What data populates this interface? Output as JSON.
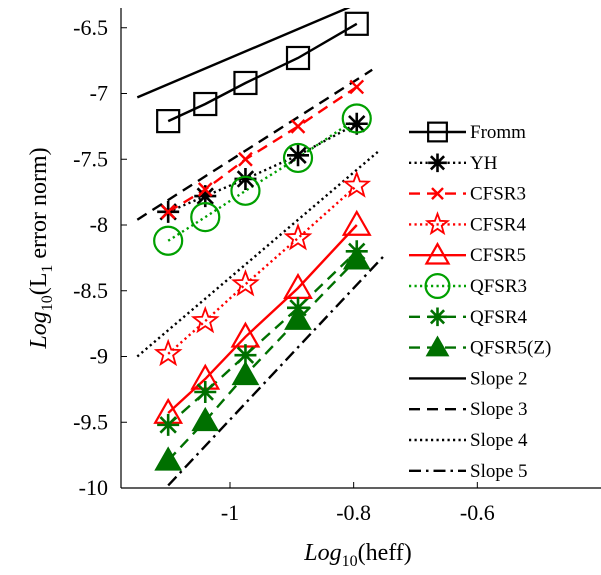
{
  "chart_data": {
    "type": "line",
    "xlabel": {
      "main": "Log",
      "sub": "10",
      "tail": "(heff)"
    },
    "ylabel": {
      "main": "Log",
      "sub": "10",
      "mid": "(L",
      "sub2": "1",
      "tail": " error norm)"
    },
    "xlim": [
      -1.15,
      -0.55
    ],
    "ylim": [
      -10,
      -6.35
    ],
    "xticks": [
      -1,
      -0.8,
      -0.6
    ],
    "xtick_labels": [
      "-1",
      "-0.8",
      "-0.6"
    ],
    "yticks": [
      -10,
      -9.5,
      -9,
      -8.5,
      -8,
      -7.5,
      -7,
      -6.5
    ],
    "ytick_labels": [
      "-10",
      "-9.5",
      "-9",
      "-8.5",
      "-8",
      "-7.5",
      "-7",
      "-6.5"
    ],
    "grid": false,
    "legend_position": "right",
    "series": [
      {
        "name": "Fromm",
        "color": "#000000",
        "dash": "solid",
        "marker": "square",
        "x": [
          -1.1,
          -1.04,
          -0.975,
          -0.89,
          -0.795
        ],
        "y": [
          -7.21,
          -7.08,
          -6.92,
          -6.73,
          -6.47
        ]
      },
      {
        "name": "YH",
        "color": "#000000",
        "dash": "dotted",
        "marker": "asterisk",
        "x": [
          -1.1,
          -1.04,
          -0.975,
          -0.89,
          -0.795
        ],
        "y": [
          -7.9,
          -7.78,
          -7.65,
          -7.47,
          -7.23
        ]
      },
      {
        "name": "CFSR3",
        "color": "#ff0000",
        "dash": "dashed",
        "marker": "x",
        "x": [
          -1.1,
          -1.04,
          -0.975,
          -0.89,
          -0.795
        ],
        "y": [
          -7.9,
          -7.73,
          -7.5,
          -7.25,
          -6.95
        ]
      },
      {
        "name": "CFSR4",
        "color": "#ff0000",
        "dash": "dotted",
        "marker": "star",
        "x": [
          -1.1,
          -1.04,
          -0.975,
          -0.89,
          -0.795
        ],
        "y": [
          -8.98,
          -8.73,
          -8.45,
          -8.1,
          -7.7
        ]
      },
      {
        "name": "CFSR5",
        "color": "#ff0000",
        "dash": "solid",
        "marker": "triangle-open",
        "x": [
          -1.1,
          -1.04,
          -0.975,
          -0.89,
          -0.795
        ],
        "y": [
          -9.43,
          -9.17,
          -8.85,
          -8.48,
          -8.0
        ]
      },
      {
        "name": "QFSR3",
        "color": "#00a000",
        "dash": "dotted",
        "marker": "circle",
        "x": [
          -1.1,
          -1.04,
          -0.975,
          -0.89,
          -0.795
        ],
        "y": [
          -8.12,
          -7.94,
          -7.74,
          -7.49,
          -7.19
        ]
      },
      {
        "name": "QFSR4",
        "color": "#007000",
        "dash": "dashed",
        "marker": "asterisk",
        "x": [
          -1.1,
          -1.04,
          -0.975,
          -0.89,
          -0.795
        ],
        "y": [
          -9.52,
          -9.27,
          -8.99,
          -8.63,
          -8.2
        ]
      },
      {
        "name": "QFSR5(Z)",
        "color": "#007000",
        "dash": "dashed",
        "marker": "triangle-filled",
        "x": [
          -1.1,
          -1.04,
          -0.975,
          -0.89,
          -0.795
        ],
        "y": [
          -9.79,
          -9.49,
          -9.14,
          -8.72,
          -8.26
        ]
      },
      {
        "name": "Slope 2",
        "color": "#000000",
        "dash": "solid",
        "marker": "none",
        "x": [
          -1.15,
          -0.8
        ],
        "y": [
          -7.03,
          -6.33
        ]
      },
      {
        "name": "Slope 3",
        "color": "#000000",
        "dash": "dashed",
        "marker": "none",
        "x": [
          -1.15,
          -0.77
        ],
        "y": [
          -7.96,
          -6.82
        ]
      },
      {
        "name": "Slope 4",
        "color": "#000000",
        "dash": "dotted",
        "marker": "none",
        "x": [
          -1.15,
          -0.76
        ],
        "y": [
          -9.0,
          -7.44
        ]
      },
      {
        "name": "Slope 5",
        "color": "#000000",
        "dash": "dashdot",
        "marker": "none",
        "x": [
          -1.1,
          -0.75
        ],
        "y": [
          -9.98,
          -8.23
        ]
      }
    ]
  }
}
